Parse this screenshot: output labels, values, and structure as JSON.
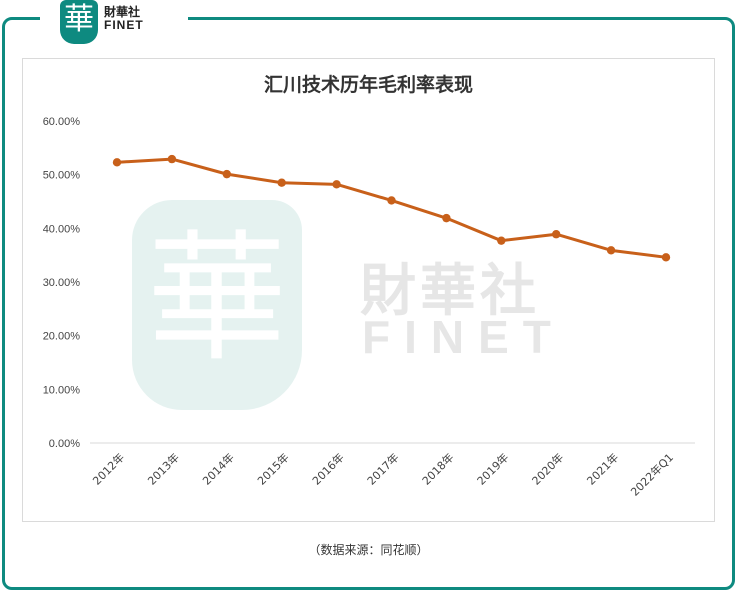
{
  "brand": {
    "seal_char": "華",
    "name_cn": "財華社",
    "name_en": "FINET"
  },
  "caption": "（数据来源：同花顺）",
  "colors": {
    "accent": "#0e8a80",
    "line": "#c8601a"
  },
  "chart_data": {
    "type": "line",
    "title": "汇川技术历年毛利率表现",
    "xlabel": "",
    "ylabel": "",
    "categories": [
      "2012年",
      "2013年",
      "2014年",
      "2015年",
      "2016年",
      "2017年",
      "2018年",
      "2019年",
      "2020年",
      "2021年",
      "2022年Q1"
    ],
    "series": [
      {
        "name": "毛利率",
        "values": [
          52.3,
          52.9,
          50.1,
          48.5,
          48.2,
          45.2,
          41.9,
          37.7,
          38.9,
          35.9,
          34.6
        ]
      }
    ],
    "ylim": [
      0,
      60
    ],
    "yticks": [
      "0.00%",
      "10.00%",
      "20.00%",
      "30.00%",
      "40.00%",
      "50.00%",
      "60.00%"
    ],
    "grid": false,
    "legend": "none"
  }
}
